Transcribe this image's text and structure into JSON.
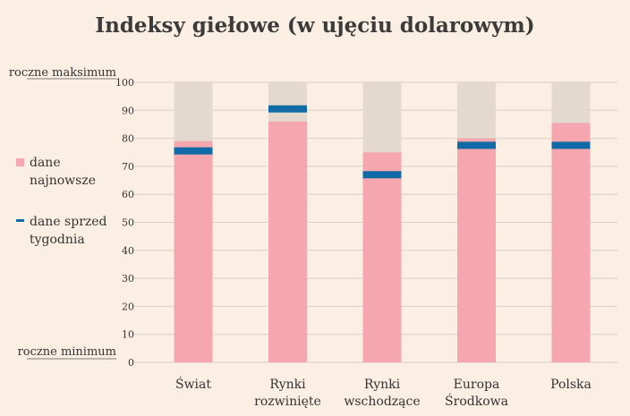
{
  "colors": {
    "background": "#fbeee3",
    "range": "#e3d9cf",
    "latest": "#f5a6ae",
    "previous": "#0f6aa6",
    "grid": "#d9cfc6"
  },
  "chart_data": {
    "type": "bar",
    "title": "Indeksy giełowe (w ujęciu dolarowym)",
    "y_top_label": "roczne maksimum",
    "y_bottom_label": "roczne minimum",
    "ylim": [
      0,
      100
    ],
    "yticks": [
      "0",
      "10",
      "20",
      "30",
      "40",
      "50",
      "60",
      "70",
      "80",
      "90",
      "100"
    ],
    "categories": [
      [
        "Świat"
      ],
      [
        "Rynki",
        "rozwinięte"
      ],
      [
        "Rynki",
        "wschodzące"
      ],
      [
        "Europa",
        "Środkowa"
      ],
      [
        "Polska"
      ]
    ],
    "range_max": [
      100,
      100,
      100,
      100,
      100
    ],
    "series": [
      {
        "name": "dane najnowsze",
        "values": [
          79,
          86,
          75,
          80,
          85.5
        ]
      },
      {
        "name": "dane sprzed tygodnia",
        "values": [
          75.5,
          90.5,
          67,
          77.5,
          77.5
        ]
      }
    ],
    "legend": [
      {
        "lines": [
          "dane",
          "najnowsze"
        ],
        "marker": "square"
      },
      {
        "lines": [
          "dane sprzed",
          "tygodnia"
        ],
        "marker": "dash"
      }
    ]
  }
}
